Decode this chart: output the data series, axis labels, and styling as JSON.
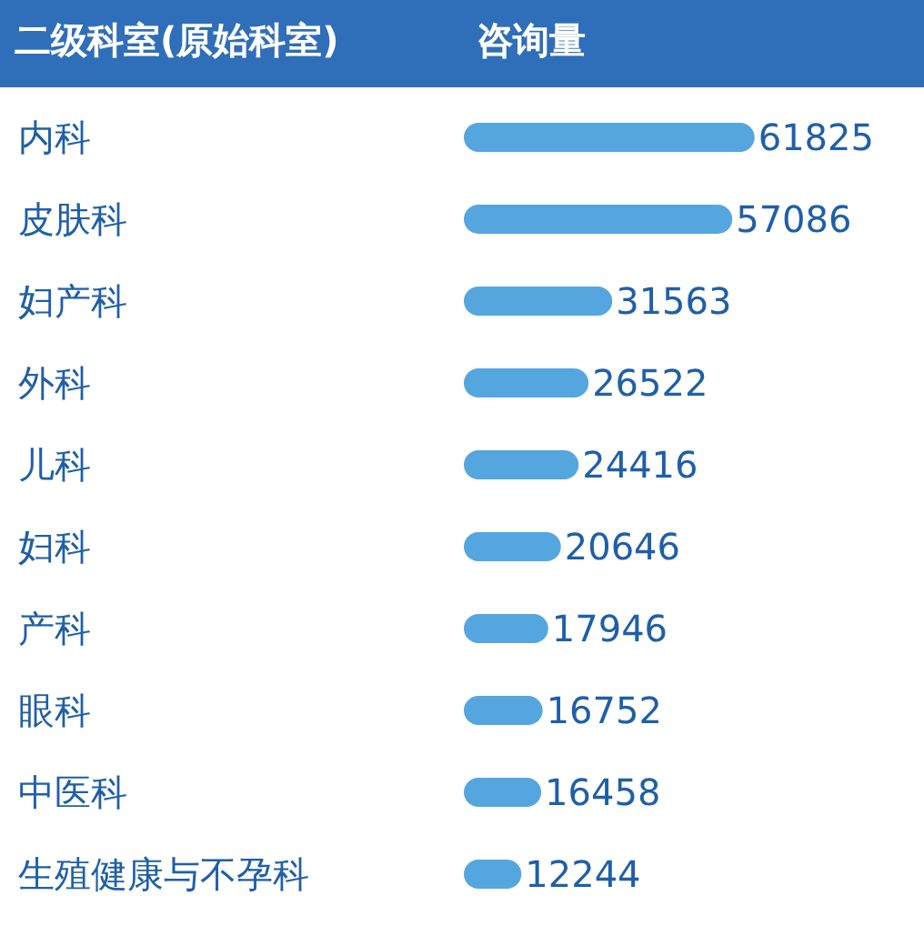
{
  "chart_data": {
    "type": "bar",
    "orientation": "horizontal",
    "ylabel": "二级科室(原始科室)",
    "xlabel": "咨询量",
    "categories": [
      "内科",
      "皮肤科",
      "妇产科",
      "外科",
      "儿科",
      "妇科",
      "产科",
      "眼科",
      "中医科",
      "生殖健康与不孕科"
    ],
    "values": [
      61825,
      57086,
      31563,
      26522,
      24416,
      20646,
      17946,
      16752,
      16458,
      12244
    ],
    "color": "#55a6df",
    "data_labels": true
  }
}
